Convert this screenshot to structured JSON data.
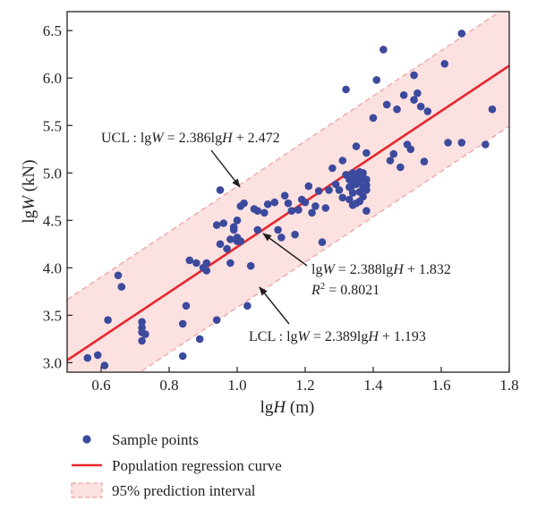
{
  "chart_data": {
    "type": "scatter",
    "xlabel_parts": [
      "lg",
      "H",
      " (m)"
    ],
    "ylabel_parts": [
      "lg",
      "W",
      " (kN)"
    ],
    "xlim": [
      0.5,
      1.8
    ],
    "ylim": [
      2.9,
      6.7
    ],
    "xticks": [
      "0.6",
      "0.8",
      "1.0",
      "1.2",
      "1.4",
      "1.6",
      "1.8"
    ],
    "yticks": [
      "3.0",
      "3.5",
      "4.0",
      "4.5",
      "5.0",
      "5.5",
      "6.0",
      "6.5"
    ],
    "xtick_values": [
      0.6,
      0.8,
      1.0,
      1.2,
      1.4,
      1.6,
      1.8
    ],
    "ytick_values": [
      3.0,
      3.5,
      4.0,
      4.5,
      5.0,
      5.5,
      6.0,
      6.5
    ],
    "grid": false,
    "colors": {
      "points": "#3b4a9c",
      "regression": "#e8262a",
      "band_fill": "#fce1e1",
      "band_edge": "#f08c8c",
      "text": "#231f20"
    },
    "regression": {
      "name": "Population regression curve",
      "slope": 2.388,
      "intercept": 1.832,
      "r2": 0.8021
    },
    "ucl": {
      "slope": 2.386,
      "intercept": 2.472
    },
    "lcl": {
      "slope": 2.389,
      "intercept": 1.193
    },
    "annotations": {
      "ucl": [
        "UCL : lg",
        "W",
        " = 2.386lg",
        "H",
        " + 2.472"
      ],
      "reg_line1": [
        "lg",
        "W",
        " = 2.388lg",
        "H",
        " + 1.832"
      ],
      "reg_line2": [
        "R",
        "2",
        " = 0.8021"
      ],
      "lcl": [
        "LCL : lg",
        "W",
        " = 2.389lg",
        "H",
        " + 1.193"
      ]
    },
    "legend": {
      "placement": "bottom",
      "items": [
        {
          "label": "Sample points",
          "kind": "marker"
        },
        {
          "label": "Population regression curve",
          "kind": "line"
        },
        {
          "label": "95% prediction interval",
          "kind": "patch"
        }
      ]
    },
    "series": [
      {
        "name": "Sample points",
        "points": [
          [
            0.56,
            3.05
          ],
          [
            0.59,
            3.08
          ],
          [
            0.61,
            2.97
          ],
          [
            0.62,
            3.45
          ],
          [
            0.65,
            3.92
          ],
          [
            0.66,
            3.8
          ],
          [
            0.72,
            3.43
          ],
          [
            0.72,
            3.37
          ],
          [
            0.72,
            3.32
          ],
          [
            0.73,
            3.3
          ],
          [
            0.72,
            3.23
          ],
          [
            0.84,
            3.07
          ],
          [
            0.84,
            3.41
          ],
          [
            0.85,
            3.6
          ],
          [
            0.86,
            4.08
          ],
          [
            0.88,
            4.05
          ],
          [
            0.89,
            3.25
          ],
          [
            0.9,
            4.0
          ],
          [
            0.91,
            3.97
          ],
          [
            0.91,
            4.05
          ],
          [
            0.94,
            4.45
          ],
          [
            0.95,
            4.82
          ],
          [
            0.94,
            3.45
          ],
          [
            0.95,
            4.25
          ],
          [
            0.96,
            4.47
          ],
          [
            0.97,
            4.2
          ],
          [
            0.98,
            4.3
          ],
          [
            0.98,
            4.05
          ],
          [
            0.99,
            4.43
          ],
          [
            0.99,
            4.4
          ],
          [
            1.0,
            4.5
          ],
          [
            1.0,
            4.32
          ],
          [
            1.0,
            4.28
          ],
          [
            1.01,
            4.28
          ],
          [
            1.01,
            4.65
          ],
          [
            1.02,
            4.68
          ],
          [
            1.03,
            3.6
          ],
          [
            1.04,
            4.02
          ],
          [
            1.05,
            4.62
          ],
          [
            1.06,
            4.4
          ],
          [
            1.06,
            4.6
          ],
          [
            1.08,
            4.58
          ],
          [
            1.09,
            4.67
          ],
          [
            1.11,
            4.69
          ],
          [
            1.12,
            4.4
          ],
          [
            1.13,
            4.32
          ],
          [
            1.14,
            4.76
          ],
          [
            1.15,
            4.68
          ],
          [
            1.16,
            4.6
          ],
          [
            1.17,
            4.35
          ],
          [
            1.18,
            4.61
          ],
          [
            1.19,
            4.72
          ],
          [
            1.2,
            4.69
          ],
          [
            1.21,
            4.86
          ],
          [
            1.22,
            4.58
          ],
          [
            1.23,
            4.65
          ],
          [
            1.24,
            4.81
          ],
          [
            1.25,
            4.27
          ],
          [
            1.26,
            4.63
          ],
          [
            1.27,
            4.82
          ],
          [
            1.28,
            5.05
          ],
          [
            1.29,
            4.88
          ],
          [
            1.3,
            4.82
          ],
          [
            1.31,
            5.13
          ],
          [
            1.31,
            4.74
          ],
          [
            1.32,
            5.88
          ],
          [
            1.32,
            4.98
          ],
          [
            1.33,
            4.93
          ],
          [
            1.33,
            4.72
          ],
          [
            1.34,
            5.0
          ],
          [
            1.34,
            4.87
          ],
          [
            1.34,
            4.79
          ],
          [
            1.34,
            4.66
          ],
          [
            1.35,
            5.28
          ],
          [
            1.35,
            4.97
          ],
          [
            1.35,
            4.88
          ],
          [
            1.36,
            4.93
          ],
          [
            1.36,
            4.8
          ],
          [
            1.36,
            4.7
          ],
          [
            1.37,
            5.0
          ],
          [
            1.37,
            4.84
          ],
          [
            1.37,
            4.75
          ],
          [
            1.38,
            5.21
          ],
          [
            1.38,
            4.93
          ],
          [
            1.38,
            4.87
          ],
          [
            1.38,
            4.6
          ],
          [
            1.4,
            5.58
          ],
          [
            1.41,
            5.98
          ],
          [
            1.43,
            6.3
          ],
          [
            1.44,
            5.72
          ],
          [
            1.45,
            5.13
          ],
          [
            1.46,
            5.2
          ],
          [
            1.47,
            5.67
          ],
          [
            1.48,
            5.06
          ],
          [
            1.49,
            5.82
          ],
          [
            1.5,
            5.3
          ],
          [
            1.51,
            5.25
          ],
          [
            1.52,
            6.03
          ],
          [
            1.52,
            5.77
          ],
          [
            1.53,
            5.84
          ],
          [
            1.54,
            5.7
          ],
          [
            1.55,
            5.12
          ],
          [
            1.56,
            5.65
          ],
          [
            1.61,
            6.15
          ],
          [
            1.62,
            5.32
          ],
          [
            1.66,
            5.32
          ],
          [
            1.66,
            6.47
          ],
          [
            1.73,
            5.3
          ],
          [
            1.75,
            5.67
          ],
          [
            1.34,
            4.92
          ],
          [
            1.32,
            4.98
          ],
          [
            1.37,
            4.95
          ],
          [
            1.36,
            5.01
          ],
          [
            1.33,
            4.85
          ],
          [
            1.35,
            4.68
          ],
          [
            1.38,
            4.82
          ],
          [
            1.36,
            4.9
          ]
        ]
      }
    ]
  }
}
